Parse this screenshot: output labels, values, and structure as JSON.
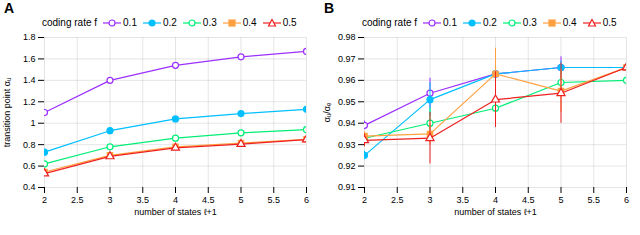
{
  "chart_data": [
    {
      "type": "line",
      "title": "A",
      "xlabel": "number of states ℓ+1",
      "ylabel": "transition point αᵤ",
      "xlim": [
        2,
        6
      ],
      "ylim": [
        0.4,
        1.8
      ],
      "xticks": [
        2,
        2.5,
        3,
        3.5,
        4,
        4.5,
        5,
        5.5,
        6
      ],
      "yticks": [
        0.4,
        0.6,
        0.8,
        1,
        1.2,
        1.4,
        1.6,
        1.8
      ],
      "grid": true,
      "legend": "upper left",
      "legend_title": "coding rate f",
      "x": [
        2,
        3,
        4,
        5,
        6
      ],
      "series": [
        {
          "name": "0.1",
          "color": "#9B30FF",
          "marker": "circle-open",
          "values": [
            1.1,
            1.4,
            1.54,
            1.62,
            1.67
          ]
        },
        {
          "name": "0.2",
          "color": "#00BFFF",
          "marker": "circle",
          "values": [
            0.73,
            0.93,
            1.04,
            1.09,
            1.13
          ]
        },
        {
          "name": "0.3",
          "color": "#00EE76",
          "marker": "circle-open",
          "values": [
            0.62,
            0.78,
            0.86,
            0.91,
            0.94
          ]
        },
        {
          "name": "0.4",
          "color": "#FFA040",
          "marker": "square",
          "values": [
            0.545,
            0.7,
            0.78,
            0.815,
            0.85
          ]
        },
        {
          "name": "0.5",
          "color": "#EE2020",
          "marker": "triangle-open",
          "values": [
            0.53,
            0.69,
            0.77,
            0.805,
            0.848
          ]
        }
      ]
    },
    {
      "type": "line",
      "title": "B",
      "xlabel": "number of states ℓ+1",
      "ylabel": "αᵤ/αₑ",
      "xlim": [
        2,
        6
      ],
      "ylim": [
        0.91,
        0.98
      ],
      "xticks": [
        2,
        2.5,
        3,
        3.5,
        4,
        4.5,
        5,
        5.5,
        6
      ],
      "yticks": [
        0.91,
        0.92,
        0.93,
        0.94,
        0.95,
        0.96,
        0.97,
        0.98
      ],
      "grid": true,
      "legend": "upper left",
      "legend_title": "coding rate f",
      "x": [
        2,
        3,
        4,
        5,
        6
      ],
      "series": [
        {
          "name": "0.1",
          "color": "#9B30FF",
          "marker": "circle-open",
          "values": [
            0.939,
            0.954,
            0.963,
            0.966,
            0.966
          ],
          "yerr": [
            0.002,
            0.007,
            0.006,
            0.005,
            0.006
          ]
        },
        {
          "name": "0.2",
          "color": "#00BFFF",
          "marker": "circle",
          "values": [
            0.925,
            0.951,
            0.963,
            0.966,
            0.966
          ],
          "yerr": [
            0.002,
            0.008,
            0.003,
            0.003,
            0.003
          ]
        },
        {
          "name": "0.3",
          "color": "#00EE76",
          "marker": "circle-open",
          "values": [
            0.933,
            0.94,
            0.947,
            0.959,
            0.96
          ],
          "yerr": [
            0.002,
            0.007,
            0.008,
            0.006,
            0.01
          ]
        },
        {
          "name": "0.4",
          "color": "#FFA040",
          "marker": "square",
          "values": [
            0.934,
            0.935,
            0.963,
            0.955,
            0.966
          ],
          "yerr": [
            0.002,
            0.005,
            0.012,
            0.01,
            0.004
          ]
        },
        {
          "name": "0.5",
          "color": "#EE2020",
          "marker": "triangle-open",
          "values": [
            0.932,
            0.933,
            0.951,
            0.954,
            0.966
          ],
          "yerr": [
            0.003,
            0.012,
            0.013,
            0.014,
            0.006
          ]
        }
      ]
    }
  ]
}
